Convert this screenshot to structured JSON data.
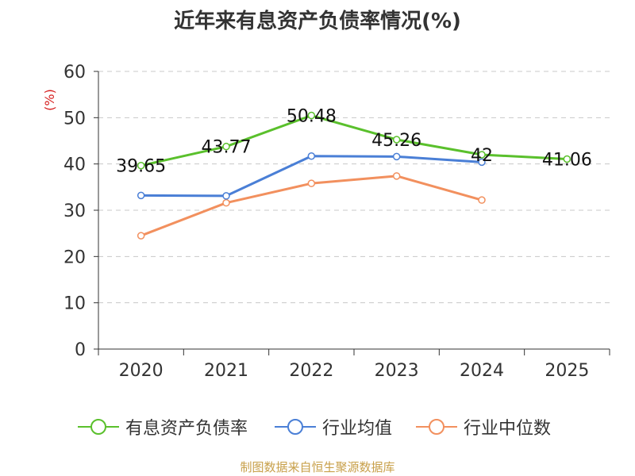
{
  "chart_data": {
    "type": "line",
    "title": "近年来有息资产负债率情况(%)",
    "ylabel": "(%)",
    "categories": [
      "2020",
      "2021",
      "2022",
      "2023",
      "2024",
      "2025"
    ],
    "ylim": [
      0,
      60
    ],
    "yticks": [
      0,
      10,
      20,
      30,
      40,
      50,
      60
    ],
    "grid": true,
    "legend_position": "bottom",
    "series": [
      {
        "name": "有息资产负债率",
        "color": "#5ac02c",
        "values": [
          39.65,
          43.77,
          50.48,
          45.26,
          42,
          41.06
        ],
        "labels": [
          "39.65",
          "43.77",
          "50.48",
          "45.26",
          "42",
          "41.06"
        ]
      },
      {
        "name": "行业均值",
        "color": "#4a7fd6",
        "values": [
          33.2,
          33.1,
          41.7,
          41.6,
          40.4,
          null
        ]
      },
      {
        "name": "行业中位数",
        "color": "#f2905e",
        "values": [
          24.5,
          31.6,
          35.8,
          37.4,
          32.2,
          null
        ]
      }
    ]
  },
  "footer": {
    "source": "制图数据来自恒生聚源数据库"
  }
}
